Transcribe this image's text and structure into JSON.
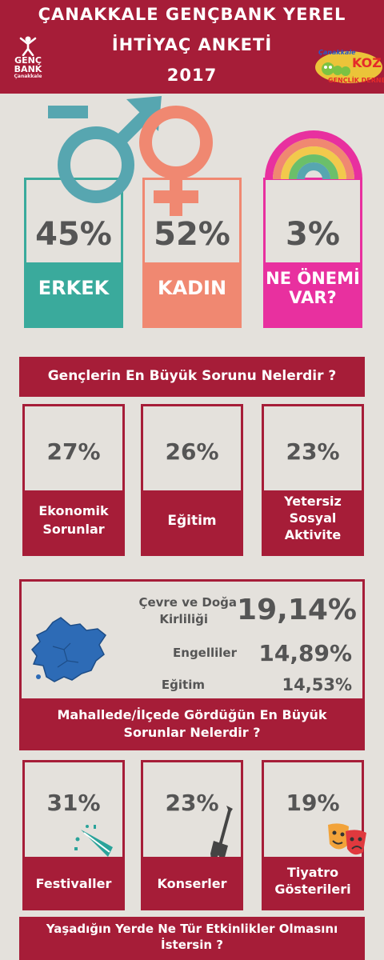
{
  "header": {
    "title_line1": "ÇANAKKALE GENÇBANK YEREL",
    "title_line2": "İHTİYAÇ ANKETİ",
    "title_line3": "2017",
    "logo_left": {
      "word1": "GENÇ",
      "word2": "BANK",
      "sub": "Çanakkale",
      "icon": "jumping-person-icon"
    },
    "logo_right": {
      "text_top": "Çanakkale",
      "text_mid": "KOZ",
      "text_bottom": "GENÇLİK DERNEĞİ",
      "icon": "caterpillar-icon"
    }
  },
  "gender": {
    "icons": [
      "male-symbol-icon",
      "female-symbol-icon",
      "rainbow-icon"
    ],
    "items": [
      {
        "percent": "45%",
        "label": "ERKEK",
        "color": "#3aaa9c"
      },
      {
        "percent": "52%",
        "label": "KADIN",
        "color": "#f08871"
      },
      {
        "percent": "3%",
        "label_line1": "NE ÖNEMİ",
        "label_line2": "VAR?",
        "color": "#e8309f"
      }
    ]
  },
  "problems": {
    "question": "Gençlerin En Büyük Sorunu Nelerdir ?",
    "items": [
      {
        "percent": "27%",
        "label_line1": "Ekonomik",
        "label_line2": "Sorunlar"
      },
      {
        "percent": "26%",
        "label_line1": "Eğitim"
      },
      {
        "percent": "23%",
        "label_line1": "Yetersiz",
        "label_line2": "Sosyal",
        "label_line3": "Aktivite"
      }
    ]
  },
  "local": {
    "map_icon": "canakkale-map-icon",
    "rows": [
      {
        "label_line1": "Çevre ve Doğa",
        "label_line2": "Kirliliği",
        "value": "19,14%"
      },
      {
        "label_line1": "Engelliler",
        "value": "14,89%"
      },
      {
        "label_line1": "Eğitim",
        "value": "14,53%"
      }
    ],
    "question_line1": "Mahallede/İlçede Gördüğün En Büyük",
    "question_line2": "Sorunlar Nelerdir ?"
  },
  "events": {
    "items": [
      {
        "percent": "31%",
        "label_line1": "Festivaller",
        "icon": "party-popper-icon"
      },
      {
        "percent": "23%",
        "label_line1": "Konserler",
        "icon": "electric-guitar-icon"
      },
      {
        "percent": "19%",
        "label_line1": "Tiyatro",
        "label_line2": "Gösterileri",
        "icon": "theater-masks-icon"
      }
    ],
    "question_line1": "Yaşadığın Yerde Ne Tür Etkinlikler Olmasını",
    "question_line2": "İstersin ?"
  },
  "colors": {
    "crimson": "#a61d38",
    "background": "#e4e1dc",
    "teal": "#3aaa9c",
    "salmon": "#f08871",
    "pink": "#e8309f",
    "percent_text": "#555555"
  }
}
